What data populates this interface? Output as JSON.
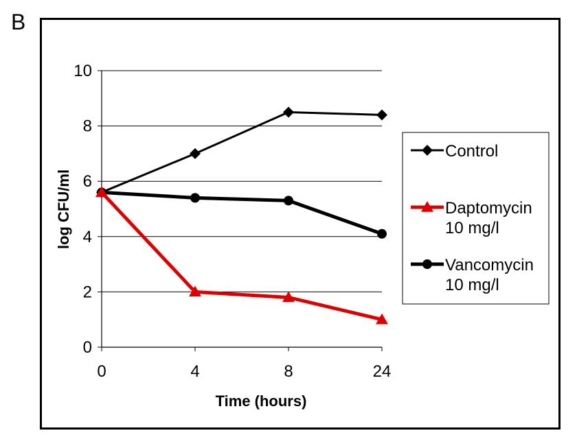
{
  "panel_label": "B",
  "chart_data": {
    "type": "line",
    "title": "",
    "xlabel": "Time (hours)",
    "ylabel": "log CFU/ml",
    "categories": [
      "0",
      "4",
      "8",
      "24"
    ],
    "ylim": [
      0,
      10
    ],
    "yticks": [
      0,
      2,
      4,
      6,
      8,
      10
    ],
    "grid": true,
    "legend_position": "right",
    "series": [
      {
        "name": "Control",
        "legend_lines": [
          "Control"
        ],
        "values": [
          5.6,
          7.0,
          8.5,
          8.4
        ],
        "color": "#000000",
        "marker": "diamond",
        "line": "thin"
      },
      {
        "name": "Daptomycin 10 mg/l",
        "legend_lines": [
          "Daptomycin",
          "10 mg/l"
        ],
        "values": [
          5.6,
          2.0,
          1.8,
          1.0
        ],
        "color": "#dd0000",
        "marker": "triangle",
        "line": "thick"
      },
      {
        "name": "Vancomycin 10 mg/l",
        "legend_lines": [
          "Vancomycin",
          "10 mg/l"
        ],
        "values": [
          5.6,
          5.4,
          5.3,
          4.1
        ],
        "color": "#000000",
        "marker": "circle",
        "line": "thick"
      }
    ]
  }
}
